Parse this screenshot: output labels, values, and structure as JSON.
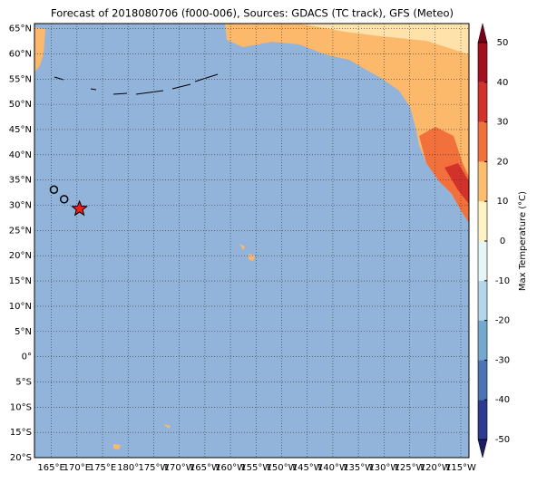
{
  "title": "Forecast of 2018080706 (f000-006), Sources: GDACS (TC track), GFS (Meteo)",
  "map": {
    "lonlim": [
      161.7,
      246.6
    ],
    "latlim": [
      -20,
      66
    ],
    "ocean_color": "#92b4da",
    "land_color": "#fdb96b",
    "lat_ticks": [
      {
        "value": 65,
        "label": "65°N"
      },
      {
        "value": 60,
        "label": "60°N"
      },
      {
        "value": 55,
        "label": "55°N"
      },
      {
        "value": 50,
        "label": "50°N"
      },
      {
        "value": 45,
        "label": "45°N"
      },
      {
        "value": 40,
        "label": "40°N"
      },
      {
        "value": 35,
        "label": "35°N"
      },
      {
        "value": 30,
        "label": "30°N"
      },
      {
        "value": 25,
        "label": "25°N"
      },
      {
        "value": 20,
        "label": "20°N"
      },
      {
        "value": 15,
        "label": "15°N"
      },
      {
        "value": 10,
        "label": "10°N"
      },
      {
        "value": 5,
        "label": "5°N"
      },
      {
        "value": 0,
        "label": "0°"
      },
      {
        "value": -5,
        "label": "5°S"
      },
      {
        "value": -10,
        "label": "10°S"
      },
      {
        "value": -15,
        "label": "15°S"
      },
      {
        "value": -20,
        "label": "20°S"
      }
    ],
    "lon_ticks": [
      {
        "value": 165,
        "label": "165°E"
      },
      {
        "value": 170,
        "label": "170°E"
      },
      {
        "value": 175,
        "label": "175°E"
      },
      {
        "value": 180,
        "label": "180°"
      },
      {
        "value": 185,
        "label": "175°W"
      },
      {
        "value": 190,
        "label": "170°W"
      },
      {
        "value": 195,
        "label": "165°W"
      },
      {
        "value": 200,
        "label": "160°W"
      },
      {
        "value": 205,
        "label": "155°W"
      },
      {
        "value": 210,
        "label": "150°W"
      },
      {
        "value": 215,
        "label": "145°W"
      },
      {
        "value": 220,
        "label": "140°W"
      },
      {
        "value": 225,
        "label": "135°W"
      },
      {
        "value": 230,
        "label": "130°W"
      },
      {
        "value": 235,
        "label": "125°W"
      },
      {
        "value": 240,
        "label": "120°W"
      },
      {
        "value": 245,
        "label": "115°W"
      }
    ],
    "track": {
      "lon": [
        165.5,
        167.5
      ],
      "lat": [
        33.1,
        31.2
      ]
    },
    "current": {
      "lon": [
        170.5
      ],
      "lat": [
        29.3
      ],
      "color": "#e8211c"
    }
  },
  "colorbar": {
    "label": "Max Temperature (°C)",
    "ticks": [
      -50,
      -40,
      -30,
      -20,
      -10,
      0,
      10,
      20,
      30,
      40,
      50
    ],
    "colors": [
      "#2c3a8f",
      "#4a74b4",
      "#74a9cf",
      "#b3d6e8",
      "#e6f5f8",
      "#fff3c4",
      "#fdbf6f",
      "#f1703c",
      "#d3322a",
      "#a3111f"
    ],
    "extend_colors": [
      "#1c1f66",
      "#7a0018"
    ]
  }
}
